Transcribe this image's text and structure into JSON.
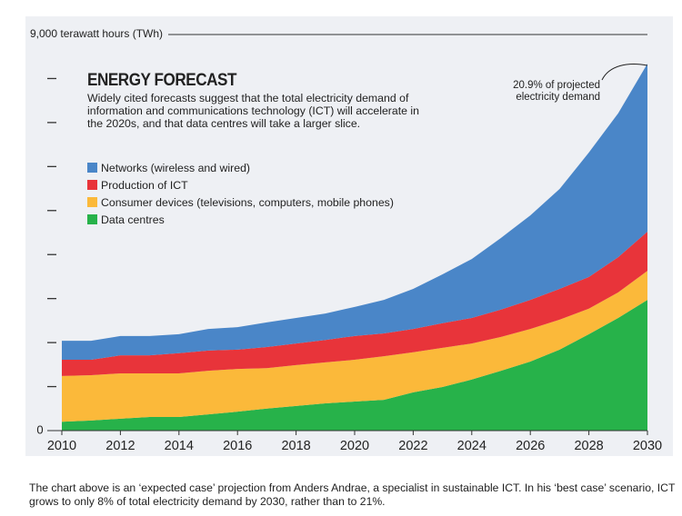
{
  "chart_data": {
    "type": "stacked_area",
    "title": "ENERGY FORECAST",
    "subtitle": "Widely cited forecasts suggest that the total electricity demand of information and communications technology (ICT) will accelerate in the 2020s, and that data centres will take a larger slice.",
    "annotation": "20.9% of projected electricity demand",
    "caption": "The chart above is an ‘expected case’ projection from Anders Andrae, a specialist in sustainable ICT. In his ‘best case’ scenario, ICT grows to only 8% of total electricity demand by 2030, rather than to 21%.",
    "x": [
      2010,
      2011,
      2012,
      2013,
      2014,
      2015,
      2016,
      2017,
      2018,
      2019,
      2020,
      2021,
      2022,
      2023,
      2024,
      2025,
      2026,
      2027,
      2028,
      2029,
      2030
    ],
    "series": [
      {
        "name": "Networks (wireless and wired)",
        "color": "#4a86c8",
        "values": [
          430,
          430,
          440,
          440,
          430,
          490,
          510,
          560,
          580,
          600,
          660,
          760,
          910,
          1110,
          1340,
          1630,
          1920,
          2270,
          2830,
          3270,
          3820
        ]
      },
      {
        "name": "Production of ICT",
        "color": "#e8343a",
        "values": [
          370,
          350,
          410,
          410,
          460,
          460,
          440,
          480,
          490,
          510,
          540,
          520,
          530,
          560,
          580,
          620,
          660,
          700,
          720,
          800,
          890
        ]
      },
      {
        "name": "Consumer devices (televisions, computers, mobile phones)",
        "color": "#fbb93a",
        "values": [
          1040,
          1030,
          1030,
          990,
          990,
          990,
          970,
          920,
          930,
          930,
          950,
          990,
          910,
          890,
          820,
          770,
          740,
          680,
          580,
          580,
          660
        ]
      },
      {
        "name": "Data centres",
        "color": "#27b24a",
        "values": [
          200,
          230,
          270,
          310,
          310,
          370,
          430,
          500,
          560,
          620,
          660,
          700,
          870,
          990,
          1160,
          1360,
          1570,
          1840,
          2190,
          2560,
          2970
        ]
      }
    ],
    "xlim": [
      2010,
      2030
    ],
    "xticks": [
      2010,
      2012,
      2014,
      2016,
      2018,
      2020,
      2022,
      2024,
      2026,
      2028,
      2030
    ],
    "ylim": [
      0,
      9000
    ],
    "yticks": [
      0,
      {
        "value": 9000,
        "label": "9,000 terawatt hours (TWh)"
      }
    ],
    "yminor_ticks": [
      1000,
      2000,
      3000,
      4000,
      5000,
      6000,
      7000,
      8000
    ]
  }
}
